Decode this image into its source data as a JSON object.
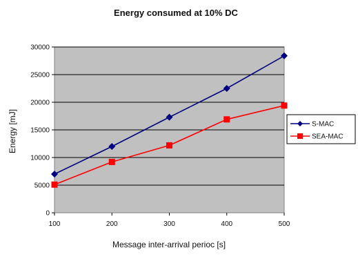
{
  "chart_data": {
    "type": "line",
    "title": "Energy consumed at 10% DC",
    "xlabel": "Message inter-arrival perioc [s]",
    "ylabel": "Energy [mJ]",
    "x": [
      100,
      200,
      300,
      400,
      500
    ],
    "x_tick_labels": [
      "100",
      "200",
      "300",
      "400",
      "500"
    ],
    "xlim": [
      100,
      500
    ],
    "ylim": [
      0,
      30000
    ],
    "y_ticks": [
      0,
      5000,
      10000,
      15000,
      20000,
      25000,
      30000
    ],
    "grid": true,
    "plot_background": "#c0c0c0",
    "legend_position": "right",
    "series": [
      {
        "name": "S-MAC",
        "values": [
          7000,
          12000,
          17300,
          22500,
          28400
        ],
        "color": "#000080",
        "marker": "diamond"
      },
      {
        "name": "SEA-MAC",
        "values": [
          5100,
          9200,
          12200,
          16900,
          19400
        ],
        "color": "#ff0000",
        "marker": "square"
      }
    ]
  }
}
